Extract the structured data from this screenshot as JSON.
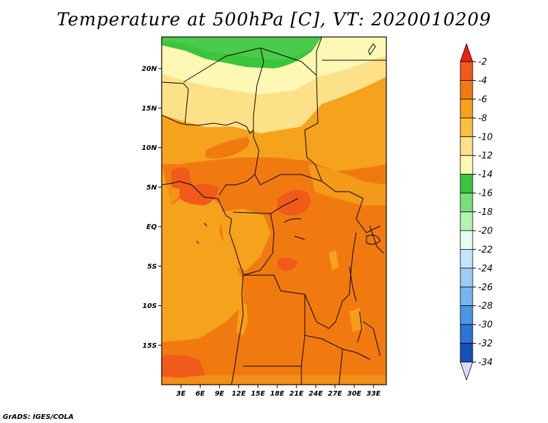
{
  "title": "Temperature at 500hPa [C], VT: 2020010209",
  "credit": "GrADS: IGES/COLA",
  "map": {
    "lon_range": [
      0,
      35
    ],
    "lat_range": [
      -20,
      24
    ],
    "lat_ticks": [
      {
        "value": 20,
        "label": "20N"
      },
      {
        "value": 15,
        "label": "15N"
      },
      {
        "value": 10,
        "label": "10N"
      },
      {
        "value": 5,
        "label": "5N"
      },
      {
        "value": 0,
        "label": "EQ"
      },
      {
        "value": -5,
        "label": "5S"
      },
      {
        "value": -10,
        "label": "10S"
      },
      {
        "value": -15,
        "label": "15S"
      }
    ],
    "lon_ticks": [
      {
        "value": 3,
        "label": "3E"
      },
      {
        "value": 6,
        "label": "6E"
      },
      {
        "value": 9,
        "label": "9E"
      },
      {
        "value": 12,
        "label": "12E"
      },
      {
        "value": 15,
        "label": "15E"
      },
      {
        "value": 18,
        "label": "18E"
      },
      {
        "value": 21,
        "label": "21E"
      },
      {
        "value": 24,
        "label": "24E"
      },
      {
        "value": 27,
        "label": "27E"
      },
      {
        "value": 30,
        "label": "30E"
      },
      {
        "value": 33,
        "label": "33E"
      }
    ]
  },
  "colorbar": {
    "levels": [
      "-2",
      "-4",
      "-6",
      "-8",
      "-10",
      "-12",
      "-14",
      "-16",
      "-18",
      "-20",
      "-22",
      "-24",
      "-26",
      "-28",
      "-30",
      "-32",
      "-34"
    ],
    "colors": [
      "#f05a1a",
      "#f07a10",
      "#f5a21c",
      "#f8c040",
      "#fce188",
      "#fef8b4",
      "#3cc43c",
      "#78e078",
      "#b4f2b4",
      "#e6fff2",
      "#c4e6fa",
      "#9ccdf5",
      "#78b4f0",
      "#4c96e6",
      "#2c74d6",
      "#1450b6",
      "#0c2880",
      "#dcdcf8"
    ],
    "top_arrow_color": "#f02010",
    "bottom_arrow_color": "#dcdcf8"
  }
}
